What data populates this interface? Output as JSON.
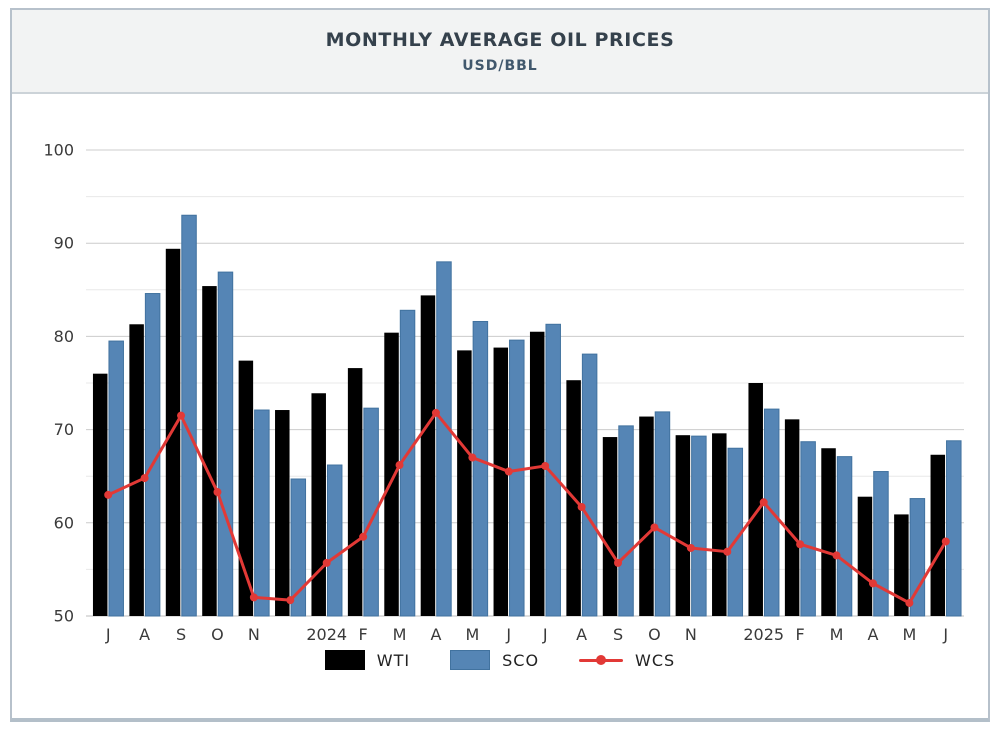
{
  "header": {
    "title": "MONTHLY AVERAGE OIL PRICES",
    "subtitle": "USD/BBL"
  },
  "colors": {
    "wti": "#000000",
    "sco": "#5585b5",
    "sco_border": "#41729f",
    "wcs": "#e23936",
    "grid_major": "#cccccc",
    "grid_minor": "#e8e8e8",
    "baseline": "#bdbdbd",
    "axis_text": "#3a3a3a",
    "title_text": "#35414c",
    "frame_border": "#b7c1cb",
    "header_bg": "#f2f3f3"
  },
  "chart_data": {
    "type": "bar",
    "title": "MONTHLY AVERAGE OIL PRICES",
    "ylabel_unit": "USD/BBL",
    "x_labels": [
      "J",
      "A",
      "S",
      "O",
      "N",
      "",
      "2024",
      "F",
      "M",
      "A",
      "M",
      "J",
      "J",
      "A",
      "S",
      "O",
      "N",
      "",
      "2025",
      "F",
      "M",
      "A",
      "M",
      "J"
    ],
    "x_months": [
      "Jul-2023",
      "Aug-2023",
      "Sep-2023",
      "Oct-2023",
      "Nov-2023",
      "Dec-2023",
      "Jan-2024",
      "Feb-2024",
      "Mar-2024",
      "Apr-2024",
      "May-2024",
      "Jun-2024",
      "Jul-2024",
      "Aug-2024",
      "Sep-2024",
      "Oct-2024",
      "Nov-2024",
      "Dec-2024",
      "Jan-2025",
      "Feb-2025",
      "Mar-2025",
      "Apr-2025",
      "May-2025",
      "Jun-2025"
    ],
    "series": [
      {
        "name": "WTI",
        "type": "bar",
        "color": "#000000",
        "values": [
          76.0,
          81.3,
          89.4,
          85.4,
          77.4,
          72.1,
          73.9,
          76.6,
          80.4,
          84.4,
          78.5,
          78.8,
          80.5,
          75.3,
          69.2,
          71.4,
          69.4,
          69.6,
          75.0,
          71.1,
          68.0,
          62.8,
          60.9,
          67.3
        ]
      },
      {
        "name": "SCO",
        "type": "bar",
        "color": "#5585b5",
        "values": [
          79.5,
          84.6,
          93.0,
          86.9,
          72.1,
          64.7,
          66.2,
          72.3,
          82.8,
          88.0,
          81.6,
          79.6,
          81.3,
          78.1,
          70.4,
          71.9,
          69.3,
          68.0,
          72.2,
          68.7,
          67.1,
          65.5,
          62.6,
          68.8
        ]
      },
      {
        "name": "WCS",
        "type": "line",
        "color": "#e23936",
        "values": [
          63.0,
          64.8,
          71.5,
          63.3,
          52.0,
          51.7,
          55.7,
          58.5,
          66.2,
          71.8,
          67.0,
          65.5,
          66.1,
          61.7,
          55.7,
          59.5,
          57.3,
          56.9,
          62.2,
          57.7,
          56.5,
          53.5,
          51.4,
          58.0
        ]
      }
    ],
    "ylim": [
      50,
      100
    ],
    "yticks": [
      50,
      60,
      70,
      80,
      90,
      100
    ],
    "minor_step": 5,
    "grid": true,
    "legend_position": "bottom"
  }
}
